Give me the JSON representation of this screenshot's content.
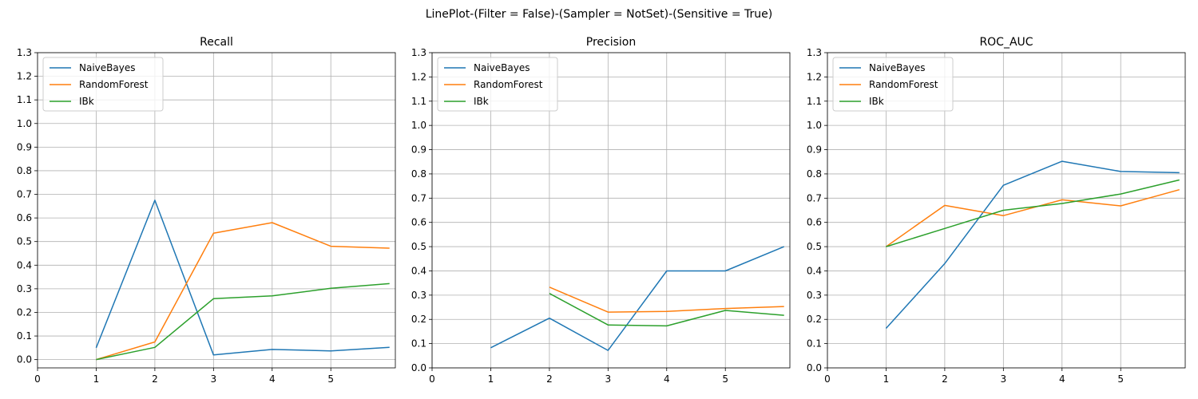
{
  "figure": {
    "suptitle": "LinePlot-(Filter = False)-(Sampler = NotSet)-(Sensitive = True)"
  },
  "series_colors": {
    "NaiveBayes": "#1f77b4",
    "RandomForest": "#ff7f0e",
    "IBk": "#2ca02c"
  },
  "chart_data": [
    {
      "type": "line",
      "title": "Recall",
      "xlabel": "",
      "ylabel": "",
      "grid": true,
      "legend": "top-left",
      "xlim": [
        0,
        6.1
      ],
      "ylim": [
        -0.035,
        1.3
      ],
      "xticks": [
        0,
        1,
        2,
        3,
        4,
        5
      ],
      "yticks": [
        0.0,
        0.1,
        0.2,
        0.3,
        0.4,
        0.5,
        0.6,
        0.7,
        0.8,
        0.9,
        1.0,
        1.1,
        1.2,
        1.3
      ],
      "series": [
        {
          "name": "NaiveBayes",
          "x": [
            1,
            2,
            3,
            4,
            5,
            6
          ],
          "values": [
            0.05,
            0.675,
            0.02,
            0.043,
            0.037,
            0.052
          ]
        },
        {
          "name": "RandomForest",
          "x": [
            1,
            2,
            3,
            4,
            5,
            6
          ],
          "values": [
            0.0,
            0.075,
            0.535,
            0.58,
            0.48,
            0.472
          ]
        },
        {
          "name": "IBk",
          "x": [
            1,
            2,
            3,
            4,
            5,
            6
          ],
          "values": [
            0.0,
            0.052,
            0.258,
            0.27,
            0.302,
            0.322
          ]
        }
      ]
    },
    {
      "type": "line",
      "title": "Precision",
      "xlabel": "",
      "ylabel": "",
      "grid": true,
      "legend": "top-left",
      "xlim": [
        0,
        6.1
      ],
      "ylim": [
        0.0,
        1.3
      ],
      "xticks": [
        0,
        1,
        2,
        3,
        4,
        5
      ],
      "yticks": [
        0.0,
        0.1,
        0.2,
        0.3,
        0.4,
        0.5,
        0.6,
        0.7,
        0.8,
        0.9,
        1.0,
        1.1,
        1.2,
        1.3
      ],
      "series": [
        {
          "name": "NaiveBayes",
          "x": [
            1,
            2,
            3,
            4,
            5,
            6
          ],
          "values": [
            0.083,
            0.205,
            0.072,
            0.4,
            0.4,
            0.5
          ]
        },
        {
          "name": "RandomForest",
          "x": [
            2,
            3,
            4,
            5,
            6
          ],
          "values": [
            0.333,
            0.23,
            0.233,
            0.245,
            0.253
          ]
        },
        {
          "name": "IBk",
          "x": [
            2,
            3,
            4,
            5,
            6
          ],
          "values": [
            0.307,
            0.177,
            0.173,
            0.237,
            0.217
          ]
        }
      ]
    },
    {
      "type": "line",
      "title": "ROC_AUC",
      "xlabel": "",
      "ylabel": "",
      "grid": true,
      "legend": "top-left",
      "xlim": [
        0,
        6.1
      ],
      "ylim": [
        0.0,
        1.3
      ],
      "xticks": [
        0,
        1,
        2,
        3,
        4,
        5
      ],
      "yticks": [
        0.0,
        0.1,
        0.2,
        0.3,
        0.4,
        0.5,
        0.6,
        0.7,
        0.8,
        0.9,
        1.0,
        1.1,
        1.2,
        1.3
      ],
      "series": [
        {
          "name": "NaiveBayes",
          "x": [
            1,
            2,
            3,
            4,
            5,
            6
          ],
          "values": [
            0.163,
            0.43,
            0.753,
            0.852,
            0.81,
            0.805
          ]
        },
        {
          "name": "RandomForest",
          "x": [
            1,
            2,
            3,
            4,
            5,
            6
          ],
          "values": [
            0.5,
            0.67,
            0.628,
            0.693,
            0.668,
            0.735
          ]
        },
        {
          "name": "IBk",
          "x": [
            1,
            2,
            3,
            4,
            5,
            6
          ],
          "values": [
            0.5,
            0.575,
            0.65,
            0.678,
            0.717,
            0.775
          ]
        }
      ]
    }
  ]
}
